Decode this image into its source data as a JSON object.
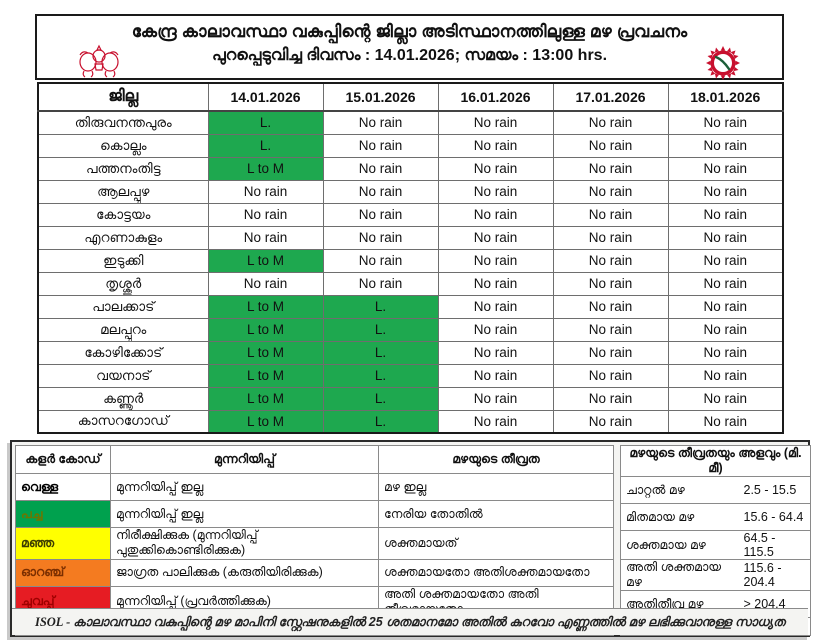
{
  "header": {
    "title_line1": "കേന്ദ്ര കാലാവസ്ഥാ വകുപ്പിന്റെ ജില്ലാ അടിസ്ഥാനത്തിലുള്ള മഴ പ്രവചനം",
    "title_line2": "പുറപ്പെടുവിച്ച ദിവസം : 14.01.2026; സമയം : 13:00 hrs.",
    "left_logo": "kerala-government-emblem",
    "right_logo": "imd-logo"
  },
  "colors": {
    "cell_green": "#1EA84F",
    "legend_green": "#00A14E",
    "legend_yellow": "#FFFF00",
    "legend_orange": "#F47B20",
    "legend_red": "#E61C23",
    "logo_red": "#C8102E"
  },
  "forecast_table": {
    "district_header": "ജില്ല",
    "date_headers": [
      "14.01.2026",
      "15.01.2026",
      "16.01.2026",
      "17.01.2026",
      "18.01.2026"
    ],
    "rows": [
      {
        "district": "തിരുവനന്തപുരം",
        "values": [
          "L.",
          "No rain",
          "No rain",
          "No rain",
          "No rain"
        ]
      },
      {
        "district": "കൊല്ലം",
        "values": [
          "L.",
          "No rain",
          "No rain",
          "No rain",
          "No rain"
        ]
      },
      {
        "district": "പത്തനംതിട്ട",
        "values": [
          "L to M",
          "No rain",
          "No rain",
          "No rain",
          "No rain"
        ]
      },
      {
        "district": "ആലപ്പുഴ",
        "values": [
          "No rain",
          "No rain",
          "No rain",
          "No rain",
          "No rain"
        ]
      },
      {
        "district": "കോട്ടയം",
        "values": [
          "No rain",
          "No rain",
          "No rain",
          "No rain",
          "No rain"
        ]
      },
      {
        "district": "എറണാകുളം",
        "values": [
          "No rain",
          "No rain",
          "No rain",
          "No rain",
          "No rain"
        ]
      },
      {
        "district": "ഇടുക്കി",
        "values": [
          "L to M",
          "No rain",
          "No rain",
          "No rain",
          "No rain"
        ]
      },
      {
        "district": "തൃശ്ശൂർ",
        "values": [
          "No rain",
          "No rain",
          "No rain",
          "No rain",
          "No rain"
        ]
      },
      {
        "district": "പാലക്കാട്",
        "values": [
          "L to M",
          "L.",
          "No rain",
          "No rain",
          "No rain"
        ]
      },
      {
        "district": "മലപ്പുറം",
        "values": [
          "L to M",
          "L.",
          "No rain",
          "No rain",
          "No rain"
        ]
      },
      {
        "district": "കോഴിക്കോട്",
        "values": [
          "L to M",
          "L.",
          "No rain",
          "No rain",
          "No rain"
        ]
      },
      {
        "district": "വയനാട്",
        "values": [
          "L to M",
          "L.",
          "No rain",
          "No rain",
          "No rain"
        ]
      },
      {
        "district": "കണ്ണൂർ",
        "values": [
          "L to M",
          "L.",
          "No rain",
          "No rain",
          "No rain"
        ]
      },
      {
        "district": "കാസറഗോഡ്",
        "values": [
          "L to M",
          "L.",
          "No rain",
          "No rain",
          "No rain"
        ]
      }
    ]
  },
  "legend": {
    "left": {
      "headers": [
        "കളർ കോഡ്",
        "മുന്നറിയിപ്പ്",
        "മഴയുടെ തീവ്രത"
      ],
      "rows": [
        {
          "color_name": "വെള്ള",
          "color": "#FFFFFF",
          "text_color": "#000000",
          "warning": "മുന്നറിയിപ്പ് ഇല്ല",
          "intensity": "മഴ ഇല്ല"
        },
        {
          "color_name": "പച്ച",
          "color": "#00A14E",
          "text_color": "#6d7500",
          "warning": "മുന്നറിയിപ്പ് ഇല്ല",
          "intensity": "നേരിയ തോതിൽ"
        },
        {
          "color_name": "മഞ്ഞ",
          "color": "#FFFF00",
          "text_color": "#3d3d00",
          "warning": "നിരീക്ഷിക്കുക (മുന്നറിയിപ്പ് പുതുക്കികൊണ്ടിരിക്കുക)",
          "intensity": "ശക്തമായത്"
        },
        {
          "color_name": "ഓറഞ്ച്",
          "color": "#F47B20",
          "text_color": "#7b2e00",
          "warning": "ജാഗ്രത പാലിക്കുക (കരുതിയിരിക്കുക)",
          "intensity": "ശക്തമായതോ അതിശക്തമായതോ"
        },
        {
          "color_name": "ചുവപ്പ്",
          "color": "#E61C23",
          "text_color": "#9e0000",
          "warning": "മുന്നറിയിപ്പ് (പ്രവർത്തിക്കുക)",
          "intensity": "അതി ശക്തമായതോ അതി തീവ്രമായതോ"
        }
      ]
    },
    "right": {
      "header": "മഴയുടെ തീവ്രതയും അളവും (മി. മീ)",
      "rows": [
        {
          "label": "ചാറ്റൽ മഴ",
          "range": "2.5 - 15.5"
        },
        {
          "label": "മിതമായ മഴ",
          "range": "15.6 - 64.4"
        },
        {
          "label": "ശക്തമായ മഴ",
          "range": "64.5 - 115.5"
        },
        {
          "label": "അതി ശക്തമായ മഴ",
          "range": "115.6 - 204.4"
        },
        {
          "label": "അതിതീവ്ര മഴ",
          "range": "> 204.4"
        }
      ]
    },
    "footnote_prefix": "ISOL -",
    "footnote": "കാലാവസ്ഥാ വകുപ്പിന്റെ മഴ മാപിനി സ്റ്റേഷനുകളിൽ 25 ശതമാനമോ അതിൽ കുറവോ എണ്ണത്തിൽ മഴ ലഭിക്കുവാനുള്ള സാധ്യത"
  }
}
